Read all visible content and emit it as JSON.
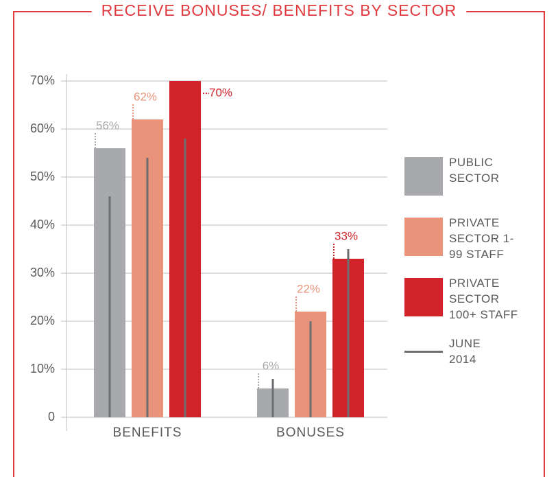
{
  "chart_data": {
    "type": "bar",
    "title": "RECEIVE BONUSES/ BENEFITS BY SECTOR",
    "categories": [
      "BENEFITS",
      "BONUSES"
    ],
    "series": [
      {
        "name": "PUBLIC SECTOR",
        "color": "#a7a9ac",
        "values": [
          56,
          6
        ],
        "value_labels": [
          "56%",
          "6%"
        ]
      },
      {
        "name": "PRIVATE SECTOR 1-99 STAFF",
        "color": "#e8937a",
        "values": [
          62,
          22
        ],
        "value_labels": [
          "62%",
          "22%"
        ]
      },
      {
        "name": "PRIVATE SECTOR 100+ STAFF",
        "color": "#d2232a",
        "values": [
          70,
          33
        ],
        "value_labels": [
          "70%",
          "33%"
        ]
      }
    ],
    "comparison": {
      "name": "JUNE 2014",
      "color": "#6d6e71",
      "values": [
        [
          46,
          54,
          58
        ],
        [
          8,
          20,
          35
        ]
      ]
    },
    "ylim": [
      0,
      70
    ],
    "yticks": [
      {
        "value": 0,
        "label": "0"
      },
      {
        "value": 10,
        "label": "10%"
      },
      {
        "value": 20,
        "label": "20%"
      },
      {
        "value": 30,
        "label": "30%"
      },
      {
        "value": 40,
        "label": "40%"
      },
      {
        "value": 50,
        "label": "50%"
      },
      {
        "value": 60,
        "label": "60%"
      },
      {
        "value": 70,
        "label": "70%"
      }
    ],
    "grid": true,
    "legend": "right",
    "frame_color": "#e0393e"
  }
}
